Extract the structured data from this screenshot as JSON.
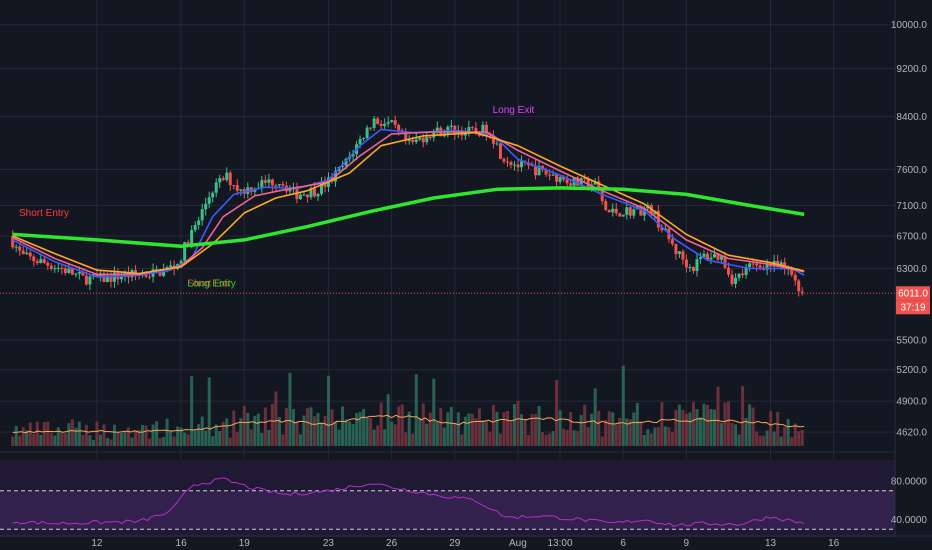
{
  "chart_data": {
    "type": "candlestick",
    "price_axis": {
      "scale": "log",
      "ticks": [
        "10000.0",
        "9200.0",
        "8400.0",
        "7600.0",
        "7100.0",
        "6700.0",
        "6300.0",
        "5500.0",
        "5200.0",
        "4900.0",
        "4620.0"
      ],
      "range": [
        4500,
        10400
      ]
    },
    "rsi_axis": {
      "ticks": [
        "80.0000",
        "40.0000"
      ],
      "range": [
        25,
        100
      ],
      "bands": [
        30,
        70
      ]
    },
    "time_axis": {
      "ticks": [
        {
          "label": "12",
          "d": 4
        },
        {
          "label": "16",
          "d": 8
        },
        {
          "label": "19",
          "d": 11
        },
        {
          "label": "23",
          "d": 15
        },
        {
          "label": "26",
          "d": 18
        },
        {
          "label": "29",
          "d": 21
        },
        {
          "label": "Aug",
          "d": 24
        },
        {
          "label": "13:00",
          "d": 26
        },
        {
          "label": "6",
          "d": 29
        },
        {
          "label": "9",
          "d": 32
        },
        {
          "label": "13",
          "d": 36
        },
        {
          "label": "16",
          "d": 39
        }
      ]
    },
    "last_price": {
      "label": "6011.0",
      "value": 6011,
      "countdown": "37:19",
      "color": "#ef5350"
    },
    "price_path": [
      {
        "d": 0,
        "v": 6700
      },
      {
        "d": 0.6,
        "v": 6450
      },
      {
        "d": 1.5,
        "v": 6380
      },
      {
        "d": 2.5,
        "v": 6300
      },
      {
        "d": 3.5,
        "v": 6180
      },
      {
        "d": 4.5,
        "v": 6180
      },
      {
        "d": 5.5,
        "v": 6220
      },
      {
        "d": 6.5,
        "v": 6230
      },
      {
        "d": 7.3,
        "v": 6270
      },
      {
        "d": 8,
        "v": 6350
      },
      {
        "d": 8.5,
        "v": 6650
      },
      {
        "d": 9,
        "v": 6900
      },
      {
        "d": 9.6,
        "v": 7300
      },
      {
        "d": 10.3,
        "v": 7500
      },
      {
        "d": 11,
        "v": 7300
      },
      {
        "d": 12,
        "v": 7400
      },
      {
        "d": 12.8,
        "v": 7450
      },
      {
        "d": 13.6,
        "v": 7250
      },
      {
        "d": 14.5,
        "v": 7300
      },
      {
        "d": 15.3,
        "v": 7450
      },
      {
        "d": 16,
        "v": 7700
      },
      {
        "d": 16.6,
        "v": 8000
      },
      {
        "d": 17.3,
        "v": 8350
      },
      {
        "d": 18.2,
        "v": 8250
      },
      {
        "d": 19,
        "v": 7950
      },
      {
        "d": 20,
        "v": 8150
      },
      {
        "d": 21,
        "v": 8200
      },
      {
        "d": 22,
        "v": 8150
      },
      {
        "d": 22.8,
        "v": 8200
      },
      {
        "d": 23.4,
        "v": 7800
      },
      {
        "d": 24.2,
        "v": 7650
      },
      {
        "d": 25,
        "v": 7600
      },
      {
        "d": 26,
        "v": 7500
      },
      {
        "d": 27,
        "v": 7400
      },
      {
        "d": 27.8,
        "v": 7400
      },
      {
        "d": 28.4,
        "v": 7000
      },
      {
        "d": 29.5,
        "v": 7030
      },
      {
        "d": 30.5,
        "v": 7050
      },
      {
        "d": 31,
        "v": 6800
      },
      {
        "d": 31.7,
        "v": 6500
      },
      {
        "d": 32.4,
        "v": 6300
      },
      {
        "d": 33,
        "v": 6450
      },
      {
        "d": 33.8,
        "v": 6450
      },
      {
        "d": 34.4,
        "v": 6150
      },
      {
        "d": 35.2,
        "v": 6320
      },
      {
        "d": 36,
        "v": 6350
      },
      {
        "d": 36.8,
        "v": 6300
      },
      {
        "d": 37.3,
        "v": 6200
      },
      {
        "d": 37.6,
        "v": 6030
      }
    ],
    "series": [
      {
        "color": "#3d5afe",
        "values": [
          {
            "d": 0,
            "v": 6650
          },
          {
            "d": 2,
            "v": 6380
          },
          {
            "d": 4,
            "v": 6200
          },
          {
            "d": 6,
            "v": 6220
          },
          {
            "d": 7.5,
            "v": 6280
          },
          {
            "d": 8.5,
            "v": 6420
          },
          {
            "d": 9.5,
            "v": 6950
          },
          {
            "d": 10.5,
            "v": 7250
          },
          {
            "d": 12,
            "v": 7350
          },
          {
            "d": 13.5,
            "v": 7330
          },
          {
            "d": 15,
            "v": 7450
          },
          {
            "d": 16.5,
            "v": 7950
          },
          {
            "d": 17.5,
            "v": 8200
          },
          {
            "d": 19,
            "v": 8150
          },
          {
            "d": 21,
            "v": 8180
          },
          {
            "d": 22.8,
            "v": 8120
          },
          {
            "d": 24,
            "v": 7750
          },
          {
            "d": 26,
            "v": 7520
          },
          {
            "d": 28,
            "v": 7250
          },
          {
            "d": 30,
            "v": 7030
          },
          {
            "d": 31.5,
            "v": 6650
          },
          {
            "d": 33,
            "v": 6400
          },
          {
            "d": 35,
            "v": 6300
          },
          {
            "d": 37,
            "v": 6300
          },
          {
            "d": 37.6,
            "v": 6220
          }
        ]
      },
      {
        "color": "#f06292",
        "values": [
          {
            "d": 0,
            "v": 6680
          },
          {
            "d": 2,
            "v": 6420
          },
          {
            "d": 4,
            "v": 6230
          },
          {
            "d": 6,
            "v": 6230
          },
          {
            "d": 8,
            "v": 6330
          },
          {
            "d": 9,
            "v": 6550
          },
          {
            "d": 10,
            "v": 6950
          },
          {
            "d": 11.5,
            "v": 7230
          },
          {
            "d": 13,
            "v": 7320
          },
          {
            "d": 15,
            "v": 7420
          },
          {
            "d": 16.5,
            "v": 7800
          },
          {
            "d": 18,
            "v": 8130
          },
          {
            "d": 20,
            "v": 8160
          },
          {
            "d": 22.5,
            "v": 8160
          },
          {
            "d": 24,
            "v": 7880
          },
          {
            "d": 26,
            "v": 7580
          },
          {
            "d": 28,
            "v": 7300
          },
          {
            "d": 30,
            "v": 7060
          },
          {
            "d": 32,
            "v": 6650
          },
          {
            "d": 34,
            "v": 6420
          },
          {
            "d": 36,
            "v": 6350
          },
          {
            "d": 37.6,
            "v": 6260
          }
        ]
      },
      {
        "color": "#ffa726",
        "values": [
          {
            "d": 0,
            "v": 6700
          },
          {
            "d": 2,
            "v": 6480
          },
          {
            "d": 4,
            "v": 6280
          },
          {
            "d": 6,
            "v": 6240
          },
          {
            "d": 8,
            "v": 6320
          },
          {
            "d": 9.5,
            "v": 6600
          },
          {
            "d": 11,
            "v": 7000
          },
          {
            "d": 12.5,
            "v": 7200
          },
          {
            "d": 14,
            "v": 7300
          },
          {
            "d": 16,
            "v": 7550
          },
          {
            "d": 17.5,
            "v": 7950
          },
          {
            "d": 19.5,
            "v": 8100
          },
          {
            "d": 22,
            "v": 8150
          },
          {
            "d": 24,
            "v": 7950
          },
          {
            "d": 26,
            "v": 7650
          },
          {
            "d": 28,
            "v": 7380
          },
          {
            "d": 30,
            "v": 7120
          },
          {
            "d": 32,
            "v": 6720
          },
          {
            "d": 34,
            "v": 6460
          },
          {
            "d": 36,
            "v": 6370
          },
          {
            "d": 37.6,
            "v": 6270
          }
        ]
      },
      {
        "color": "#2ee62e",
        "values": [
          {
            "d": 0,
            "v": 6720
          },
          {
            "d": 4,
            "v": 6650
          },
          {
            "d": 8,
            "v": 6570
          },
          {
            "d": 11,
            "v": 6650
          },
          {
            "d": 14,
            "v": 6820
          },
          {
            "d": 17,
            "v": 7020
          },
          {
            "d": 20,
            "v": 7200
          },
          {
            "d": 23,
            "v": 7320
          },
          {
            "d": 26,
            "v": 7340
          },
          {
            "d": 29,
            "v": 7320
          },
          {
            "d": 32,
            "v": 7250
          },
          {
            "d": 35,
            "v": 7100
          },
          {
            "d": 37.6,
            "v": 6980
          }
        ]
      }
    ],
    "volume_ma": [
      {
        "d": 0,
        "v": 0.25
      },
      {
        "d": 3,
        "v": 0.27
      },
      {
        "d": 6,
        "v": 0.26
      },
      {
        "d": 9,
        "v": 0.3
      },
      {
        "d": 11,
        "v": 0.42
      },
      {
        "d": 13,
        "v": 0.45
      },
      {
        "d": 15,
        "v": 0.4
      },
      {
        "d": 17,
        "v": 0.55
      },
      {
        "d": 19,
        "v": 0.52
      },
      {
        "d": 21,
        "v": 0.4
      },
      {
        "d": 23,
        "v": 0.46
      },
      {
        "d": 25,
        "v": 0.5
      },
      {
        "d": 27,
        "v": 0.44
      },
      {
        "d": 29,
        "v": 0.42
      },
      {
        "d": 31,
        "v": 0.46
      },
      {
        "d": 33,
        "v": 0.47
      },
      {
        "d": 35,
        "v": 0.44
      },
      {
        "d": 37.6,
        "v": 0.34
      }
    ],
    "rsi": [
      {
        "d": 0,
        "v": 38
      },
      {
        "d": 2,
        "v": 36
      },
      {
        "d": 4,
        "v": 37
      },
      {
        "d": 6,
        "v": 38
      },
      {
        "d": 7.5,
        "v": 48
      },
      {
        "d": 8.5,
        "v": 76
      },
      {
        "d": 10,
        "v": 82
      },
      {
        "d": 11.5,
        "v": 72
      },
      {
        "d": 13,
        "v": 66
      },
      {
        "d": 15,
        "v": 70
      },
      {
        "d": 17,
        "v": 78
      },
      {
        "d": 18.5,
        "v": 72
      },
      {
        "d": 20,
        "v": 66
      },
      {
        "d": 22,
        "v": 60
      },
      {
        "d": 23.5,
        "v": 42
      },
      {
        "d": 25,
        "v": 44
      },
      {
        "d": 27,
        "v": 40
      },
      {
        "d": 28.5,
        "v": 36
      },
      {
        "d": 30,
        "v": 40
      },
      {
        "d": 31.5,
        "v": 34
      },
      {
        "d": 33,
        "v": 36
      },
      {
        "d": 34.5,
        "v": 35
      },
      {
        "d": 36,
        "v": 43
      },
      {
        "d": 37.6,
        "v": 36
      }
    ],
    "annotations": [
      {
        "text": "Short Entry",
        "d": 0.3,
        "v": 6960,
        "color": "#ff3b3b"
      },
      {
        "text": "Short Exit",
        "d": 8.3,
        "v": 6090,
        "color": "#ff3b3b"
      },
      {
        "text": "Long Entry",
        "d": 8.3,
        "v": 6090,
        "color": "#22dd22"
      },
      {
        "text": "Long Exit",
        "d": 22.8,
        "v": 8460,
        "color": "#e040fb"
      }
    ]
  }
}
